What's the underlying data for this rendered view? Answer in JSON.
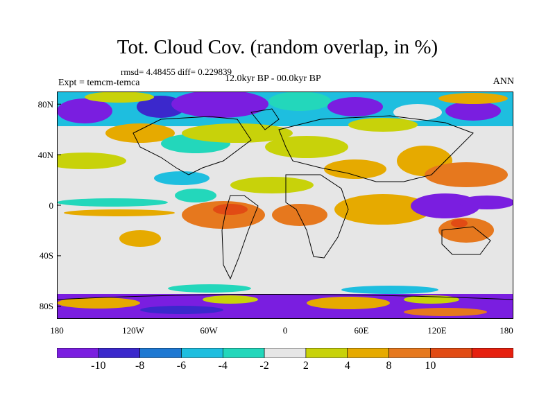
{
  "title": "Tot. Cloud Cov. (random overlap, in %)",
  "stats": "rmsd= 4.48455 diff= 0.229839",
  "experiment": "Expt = temcm-temca",
  "period": "12.0kyr BP - 00.0kyr BP",
  "season": "ANN",
  "map": {
    "projection": "cylindrical equidistant",
    "lon_range": [
      -180,
      180
    ],
    "lat_range": [
      -90,
      90
    ],
    "x_ticks": [
      "180",
      "120W",
      "60W",
      "0",
      "60E",
      "120E",
      "180"
    ],
    "y_ticks": [
      "80N",
      "40N",
      "0",
      "40S",
      "80S"
    ],
    "y_tick_lats": [
      80,
      40,
      0,
      -40,
      -80
    ]
  },
  "colorbar": {
    "colors": [
      "#7a1ee0",
      "#3b28cc",
      "#1e78d2",
      "#1ebedf",
      "#23d7bb",
      "#e6e6e6",
      "#c8d20a",
      "#e6aa00",
      "#e6781e",
      "#e14b14",
      "#e6200f"
    ],
    "labels": [
      "-10",
      "-8",
      "-6",
      "-4",
      "-2",
      "2",
      "4",
      "8",
      "10"
    ]
  }
}
